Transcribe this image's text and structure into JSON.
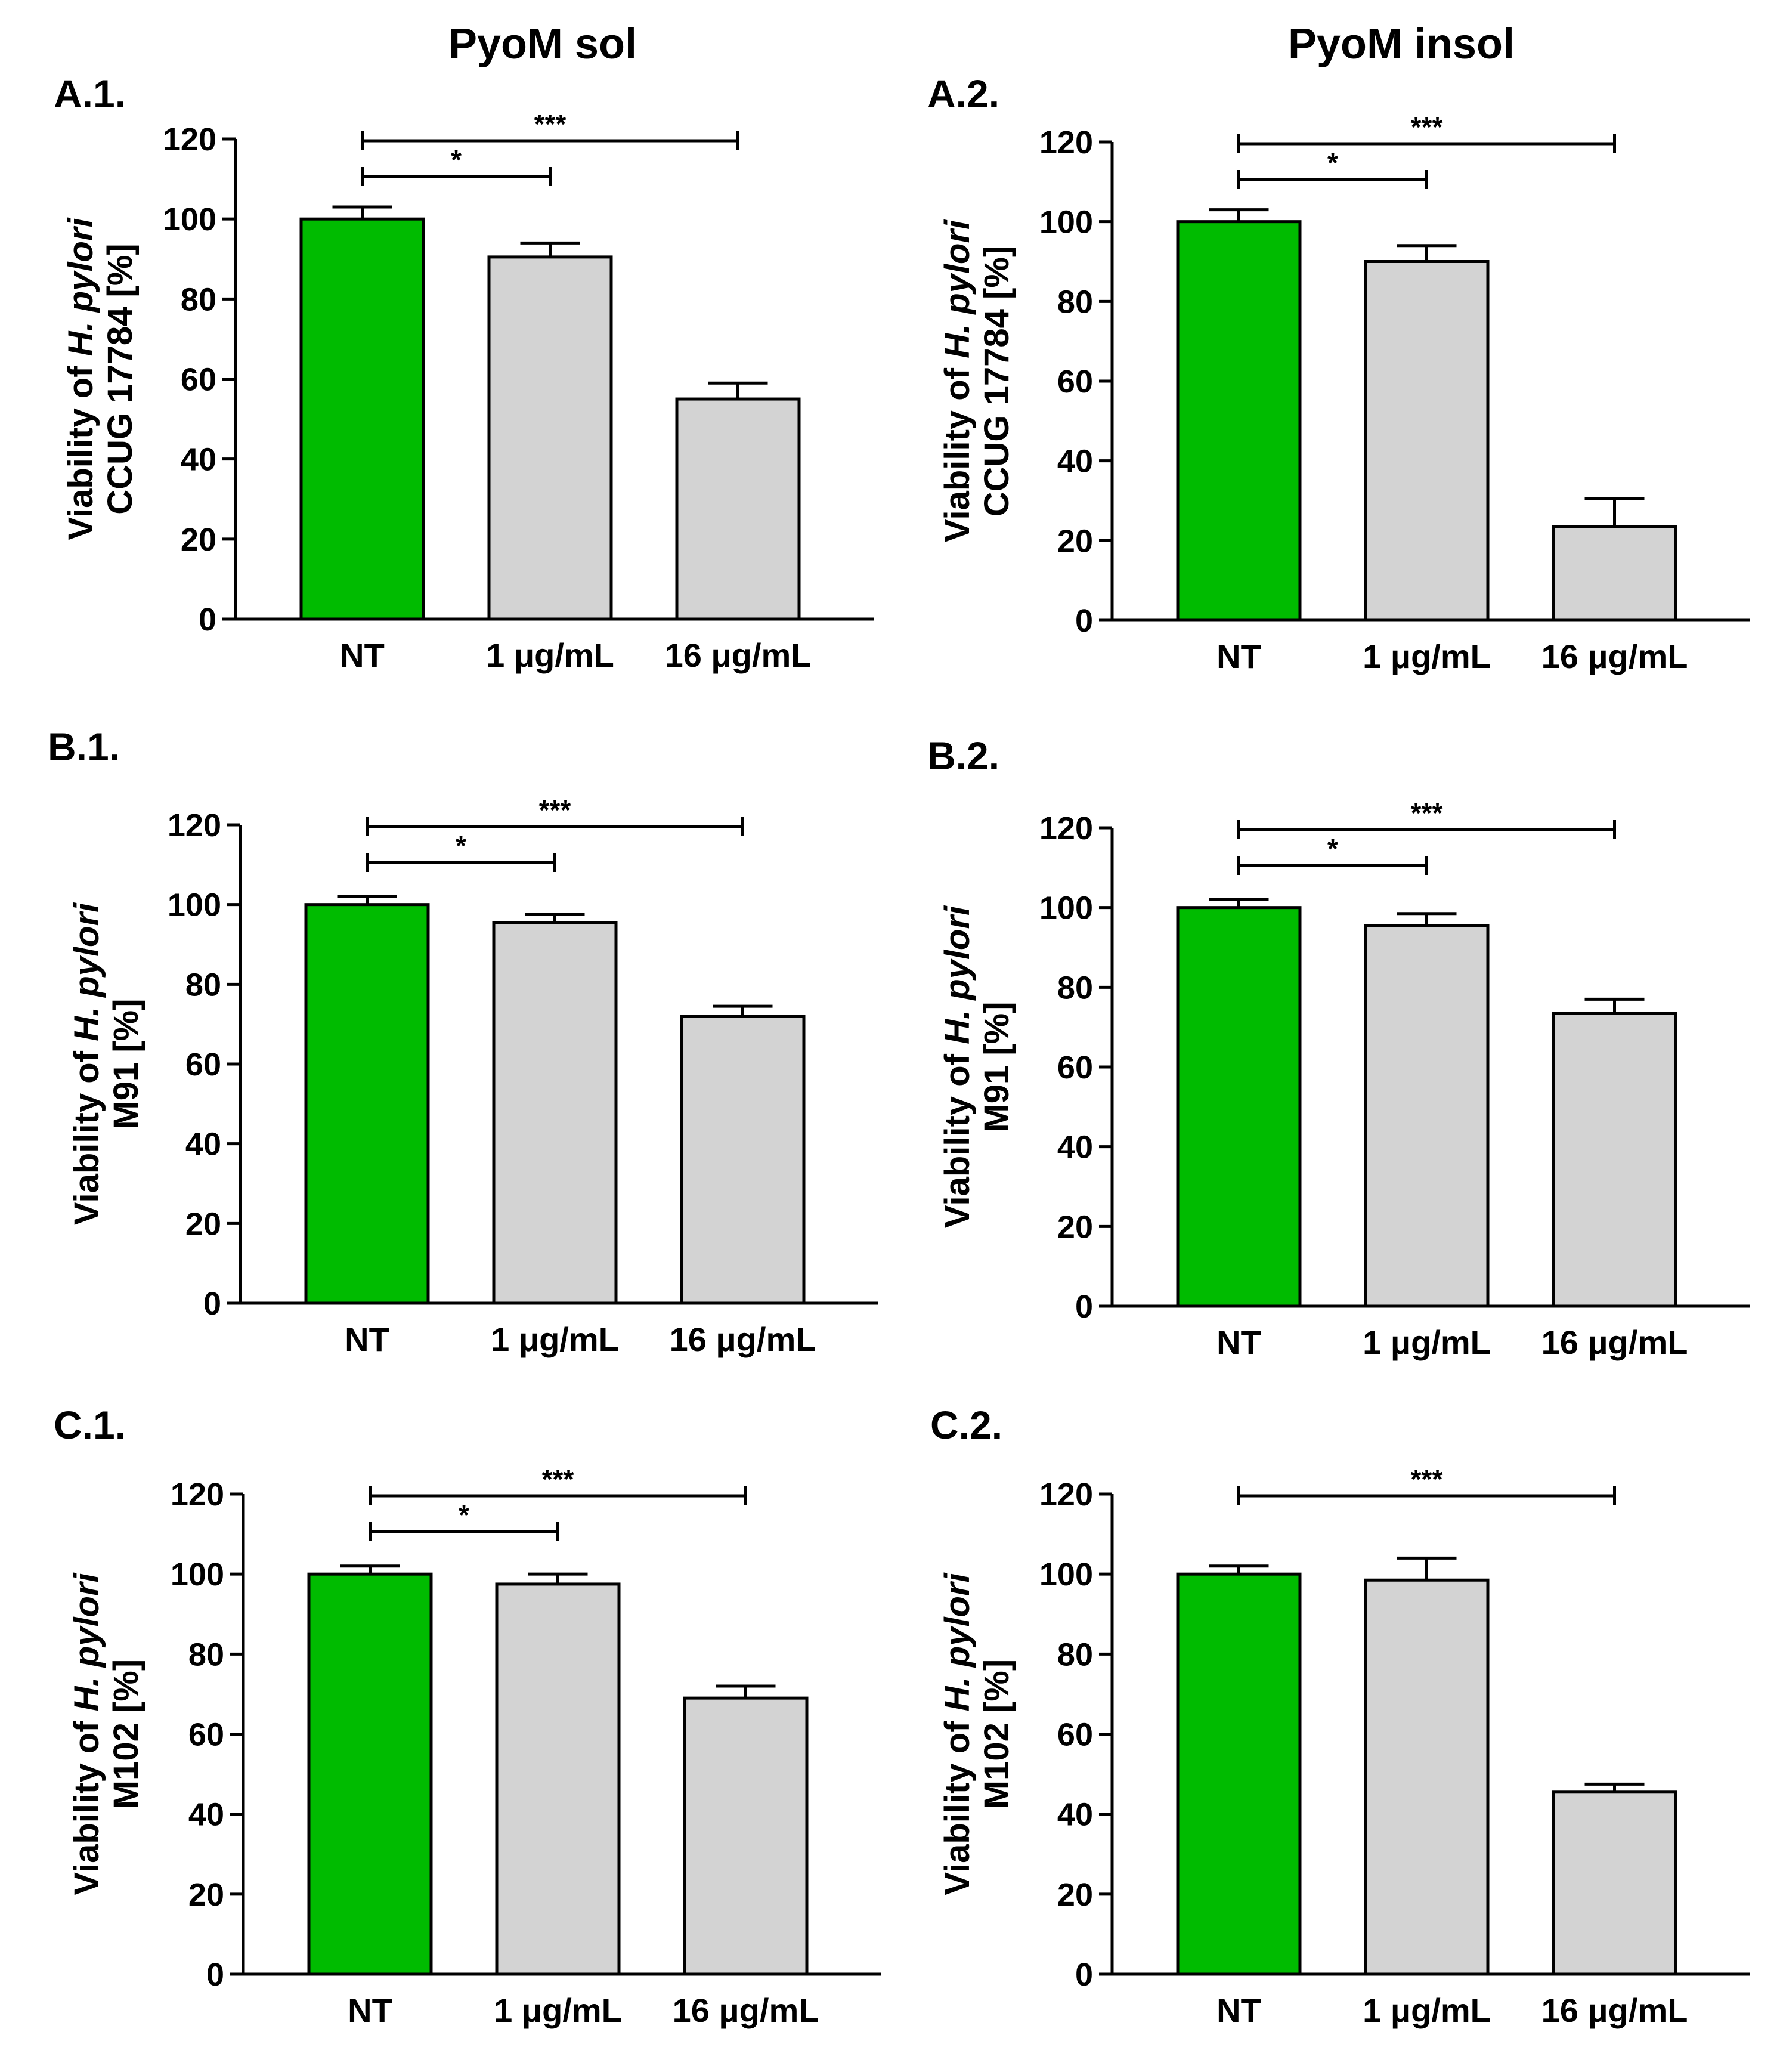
{
  "column_headers": [
    "PyoM sol",
    "PyoM insol"
  ],
  "colors": {
    "control_bar": "#00bb00",
    "treatment_bar": "#d3d3d3",
    "stroke": "#000000"
  },
  "chart_data": [
    {
      "panel": "A.1.",
      "type": "bar",
      "column": "PyoM sol",
      "ylabel_prefix": "Viability of ",
      "ylabel_species": "H. pylori",
      "ylabel_line2": "CCUG 17784 [%]",
      "categories": [
        "NT",
        "1 μg/mL",
        "16 μg/mL"
      ],
      "values": [
        100,
        90.5,
        55
      ],
      "errors": [
        3,
        3.5,
        4
      ],
      "ylim": [
        0,
        120
      ],
      "yticks": [
        0,
        20,
        40,
        60,
        80,
        100,
        120
      ],
      "significance": [
        {
          "from": 0,
          "to": 2,
          "label": "***"
        },
        {
          "from": 0,
          "to": 1,
          "label": "*"
        }
      ]
    },
    {
      "panel": "A.2.",
      "type": "bar",
      "column": "PyoM insol",
      "ylabel_prefix": "Viability of ",
      "ylabel_species": "H. pylori",
      "ylabel_line2": "CCUG 17784 [%]",
      "categories": [
        "NT",
        "1 μg/mL",
        "16 μg/mL"
      ],
      "values": [
        100,
        90,
        23.5
      ],
      "errors": [
        3,
        4,
        7
      ],
      "ylim": [
        0,
        120
      ],
      "yticks": [
        0,
        20,
        40,
        60,
        80,
        100,
        120
      ],
      "significance": [
        {
          "from": 0,
          "to": 2,
          "label": "***"
        },
        {
          "from": 0,
          "to": 1,
          "label": "*"
        }
      ]
    },
    {
      "panel": "B.1.",
      "type": "bar",
      "column": "PyoM sol",
      "ylabel_prefix": "Viability of ",
      "ylabel_species": "H. pylori",
      "ylabel_line2": "M91 [%]",
      "categories": [
        "NT",
        "1 μg/mL",
        "16 μg/mL"
      ],
      "values": [
        100,
        95.5,
        72
      ],
      "errors": [
        2,
        2,
        2.5
      ],
      "ylim": [
        0,
        120
      ],
      "yticks": [
        0,
        20,
        40,
        60,
        80,
        100,
        120
      ],
      "significance": [
        {
          "from": 0,
          "to": 2,
          "label": "***"
        },
        {
          "from": 0,
          "to": 1,
          "label": "*"
        }
      ]
    },
    {
      "panel": "B.2.",
      "type": "bar",
      "column": "PyoM insol",
      "ylabel_prefix": "Viability of ",
      "ylabel_species": "H. pylori",
      "ylabel_line2": "M91 [%]",
      "categories": [
        "NT",
        "1 μg/mL",
        "16 μg/mL"
      ],
      "values": [
        100,
        95.5,
        73.5
      ],
      "errors": [
        2,
        3,
        3.5
      ],
      "ylim": [
        0,
        120
      ],
      "yticks": [
        0,
        20,
        40,
        60,
        80,
        100,
        120
      ],
      "significance": [
        {
          "from": 0,
          "to": 2,
          "label": "***"
        },
        {
          "from": 0,
          "to": 1,
          "label": "*"
        }
      ]
    },
    {
      "panel": "C.1.",
      "type": "bar",
      "column": "PyoM sol",
      "ylabel_prefix": "Viability of ",
      "ylabel_species": "H. pylori",
      "ylabel_line2": "M102 [%]",
      "categories": [
        "NT",
        "1 μg/mL",
        "16 μg/mL"
      ],
      "values": [
        100,
        97.5,
        69
      ],
      "errors": [
        2,
        2.5,
        3
      ],
      "ylim": [
        0,
        120
      ],
      "yticks": [
        0,
        20,
        40,
        60,
        80,
        100,
        120
      ],
      "significance": [
        {
          "from": 0,
          "to": 2,
          "label": "***"
        },
        {
          "from": 0,
          "to": 1,
          "label": "*"
        }
      ]
    },
    {
      "panel": "C.2.",
      "type": "bar",
      "column": "PyoM insol",
      "ylabel_prefix": "Viability of ",
      "ylabel_species": "H. pylori",
      "ylabel_line2": "M102 [%]",
      "categories": [
        "NT",
        "1 μg/mL",
        "16 μg/mL"
      ],
      "values": [
        100,
        98.5,
        45.5
      ],
      "errors": [
        2,
        5.5,
        2
      ],
      "ylim": [
        0,
        120
      ],
      "yticks": [
        0,
        20,
        40,
        60,
        80,
        100,
        120
      ],
      "significance": [
        {
          "from": 0,
          "to": 2,
          "label": "***"
        }
      ]
    }
  ]
}
